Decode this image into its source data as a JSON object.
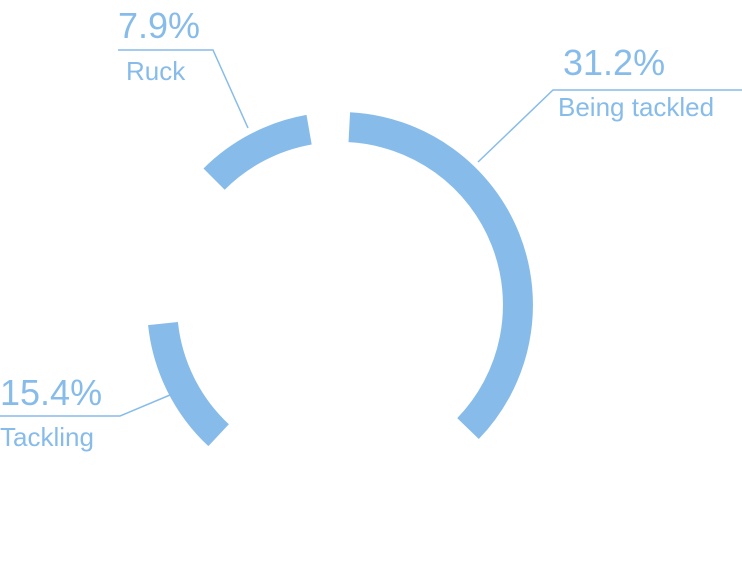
{
  "chart_data": {
    "type": "pie",
    "style": "ring-segments",
    "color": "#87BCEA",
    "slices": [
      {
        "label": "Being tackled",
        "value_label": "31.2%",
        "value": 31.2
      },
      {
        "label": "Tackling",
        "value_label": "15.4%",
        "value": 15.4
      },
      {
        "label": "Ruck",
        "value_label": "7.9%",
        "value": 7.9
      }
    ]
  }
}
